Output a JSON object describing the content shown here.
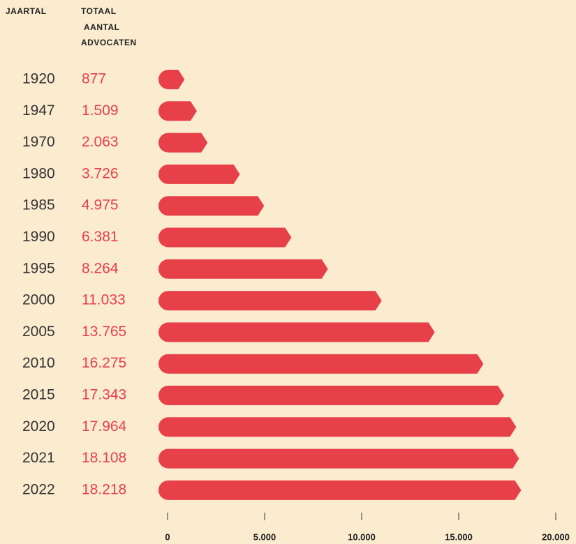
{
  "chart_data": {
    "type": "bar",
    "orientation": "horizontal",
    "column_headers": {
      "year": "JAARTAL",
      "total": [
        "TOTAAL",
        "AANTAL",
        "ADVOCATEN"
      ]
    },
    "categories": [
      "1920",
      "1947",
      "1970",
      "1980",
      "1985",
      "1990",
      "1995",
      "2000",
      "2005",
      "2010",
      "2015",
      "2020",
      "2021",
      "2022"
    ],
    "values": [
      877,
      1509,
      2063,
      3726,
      4975,
      6381,
      8264,
      11033,
      13765,
      16275,
      17343,
      17964,
      18108,
      18218
    ],
    "value_labels": [
      "877",
      "1.509",
      "2.063",
      "3.726",
      "4.975",
      "6.381",
      "8.264",
      "11.033",
      "13.765",
      "16.275",
      "17.343",
      "17.964",
      "18.108",
      "18.218"
    ],
    "color": "#e84049",
    "xlim": [
      0,
      20000
    ],
    "xticks": [
      0,
      {
        "value": 5000,
        "label": "5.000"
      },
      {
        "value": 10000,
        "label": "10.000"
      },
      {
        "value": 15000,
        "label": "15.000"
      },
      {
        "value": 20000,
        "label": "20.000"
      }
    ]
  }
}
